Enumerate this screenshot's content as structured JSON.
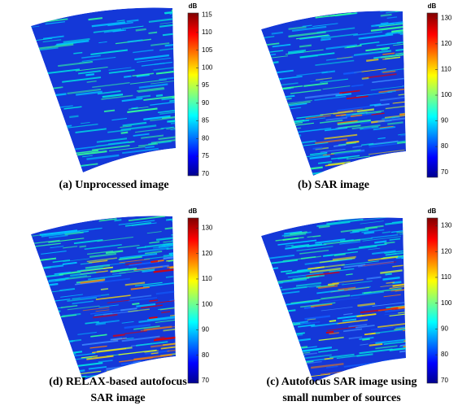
{
  "panels": [
    {
      "caption": [
        "(a) Unprocessed image"
      ],
      "colorbar": {
        "unit": "dB",
        "range": [
          69.5,
          115.5
        ],
        "ticks": [
          70,
          75,
          80,
          85,
          90,
          95,
          100,
          105,
          110,
          115
        ]
      }
    },
    {
      "caption": [
        "(b) SAR image"
      ],
      "colorbar": {
        "unit": "dB",
        "range": [
          68,
          132
        ],
        "ticks": [
          70,
          80,
          90,
          100,
          110,
          120,
          130
        ]
      }
    },
    {
      "caption": [
        "(d) RELAX-based autofocus",
        "SAR image"
      ],
      "colorbar": {
        "unit": "dB",
        "range": [
          69,
          134
        ],
        "ticks": [
          70,
          80,
          90,
          100,
          110,
          120,
          130
        ]
      }
    },
    {
      "caption": [
        "(c) Autofocus SAR image using",
        "small number of sources"
      ],
      "colorbar": {
        "unit": "dB",
        "range": [
          69,
          133
        ],
        "ticks": [
          70,
          80,
          90,
          100,
          110,
          120,
          130
        ]
      }
    }
  ]
}
